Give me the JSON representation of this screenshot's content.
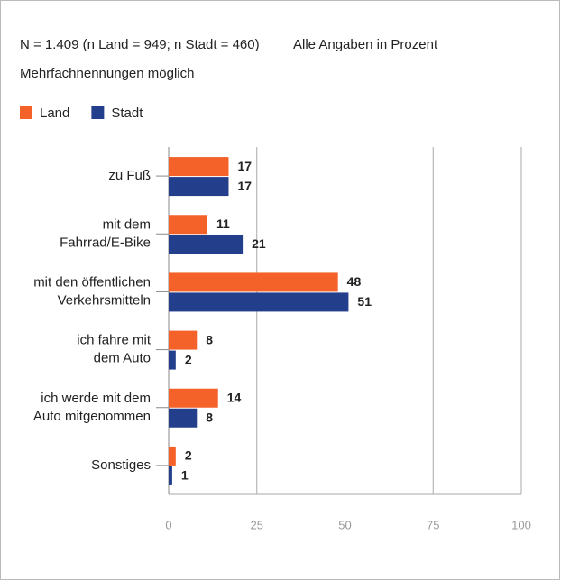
{
  "chart_data": {
    "type": "hbar",
    "notes": [
      "N = 1.409 (n Land = 949; n Stadt = 460)",
      "Alle Angaben in Prozent",
      "Mehrfachnennungen möglich"
    ],
    "categories": [
      "zu Fuß",
      "mit dem\nFahrrad/E-Bike",
      "mit den öffentlichen\nVerkehrsmitteln",
      "ich fahre mit\ndem Auto",
      "ich werde mit dem\nAuto mitgenommen",
      "Sonstiges"
    ],
    "series": [
      {
        "name": "Land",
        "color": "#f4622a",
        "values": [
          17,
          11,
          48,
          8,
          14,
          2
        ]
      },
      {
        "name": "Stadt",
        "color": "#233f8c",
        "values": [
          17,
          21,
          51,
          2,
          8,
          1
        ]
      }
    ],
    "xlim": [
      0,
      100
    ],
    "xticks": [
      0,
      25,
      50,
      75,
      100
    ],
    "grid": true,
    "legend": "top-left"
  }
}
